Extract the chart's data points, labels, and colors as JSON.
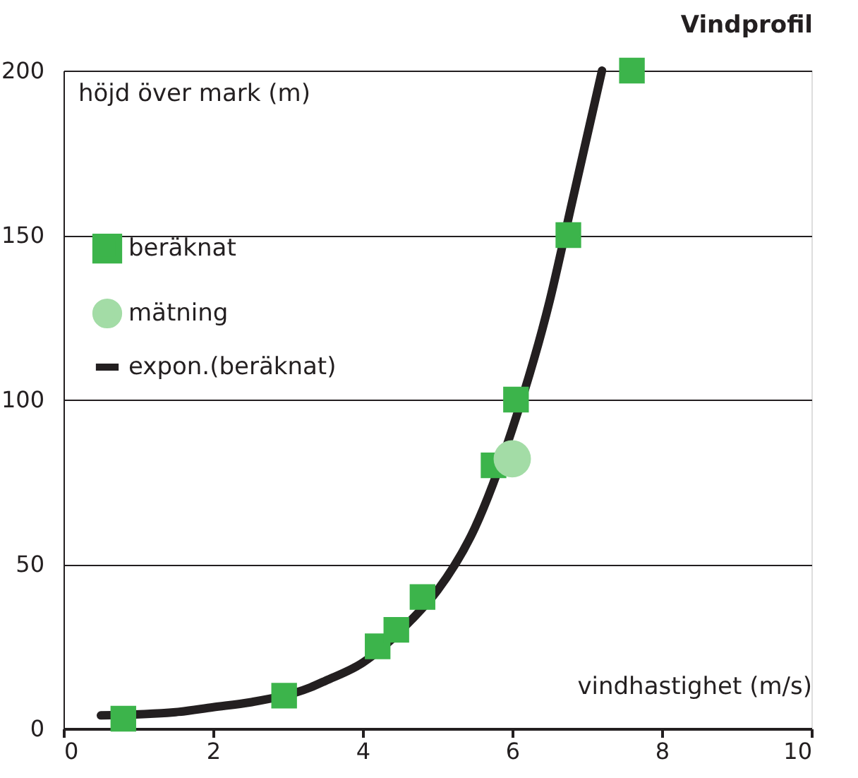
{
  "chart_data": {
    "type": "scatter",
    "title": "Vindprofil",
    "xlabel": "vindhastighet (m/s)",
    "ylabel": "höjd över mark (m)",
    "xlim": [
      0,
      10
    ],
    "xticks": [
      0,
      2,
      4,
      6,
      8,
      10
    ],
    "ylim": [
      0,
      200
    ],
    "yticks": [
      0,
      50,
      100,
      150,
      200
    ],
    "grid": "y",
    "legend": "top left",
    "series": [
      {
        "name": "beräknat",
        "marker": "square",
        "color": "#3cb44b",
        "x": [
          0.8,
          2.95,
          4.2,
          4.45,
          4.8,
          5.75,
          6.05,
          6.75,
          7.6
        ],
        "values": [
          3,
          10,
          25,
          30,
          40,
          80,
          100,
          150,
          200
        ]
      },
      {
        "name": "mätning",
        "marker": "circle",
        "color": "#a3dca6",
        "x": [
          6.0
        ],
        "values": [
          82
        ]
      },
      {
        "name": "expon.(beräknat)",
        "type": "line",
        "marker": "none",
        "line_style": "solid",
        "color": "#231f20",
        "x": [
          0.5,
          1.5,
          2.0,
          2.5,
          3.3,
          3.5,
          4.0,
          4.65,
          5.0,
          5.5,
          6.0,
          6.5,
          6.8,
          7.0,
          7.2
        ],
        "values": [
          4,
          5,
          6.5,
          8,
          12.5,
          14.5,
          20,
          33,
          42,
          61,
          91,
          130,
          160,
          180,
          200
        ]
      }
    ]
  }
}
